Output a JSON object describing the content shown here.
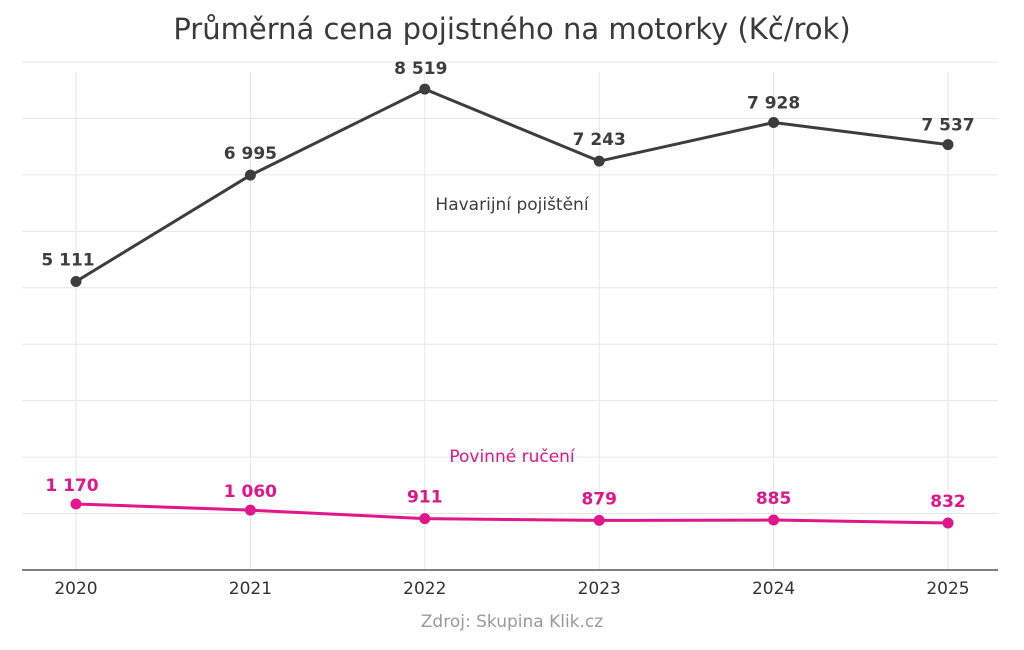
{
  "chart_data": {
    "type": "line",
    "title": "Průměrná cena pojistného na motorky (Kč/rok)",
    "source": "Zdroj: Skupina Klik.cz",
    "x": [
      "2020",
      "2021",
      "2022",
      "2023",
      "2024",
      "2025"
    ],
    "ylim": [
      0,
      9000
    ],
    "grid": true,
    "series": [
      {
        "name": "Havarijní pojištění",
        "values": [
          5111,
          6995,
          8519,
          7243,
          7928,
          7537
        ],
        "labels": [
          "5 111",
          "6 995",
          "8 519",
          "7 243",
          "7 928",
          "7 537"
        ],
        "color": "#3d3d3d"
      },
      {
        "name": "Povinné ručení",
        "values": [
          1170,
          1060,
          911,
          879,
          885,
          832
        ],
        "labels": [
          "1 170",
          "1 060",
          "911",
          "879",
          "885",
          "832"
        ],
        "color": "#e0168a"
      }
    ]
  }
}
